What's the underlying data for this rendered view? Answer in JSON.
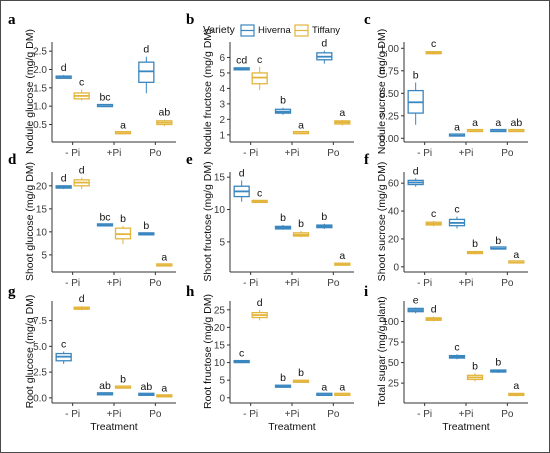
{
  "legend": {
    "title": "Variety",
    "entries": [
      {
        "name": "Hiverna",
        "color": "#3a87bf"
      },
      {
        "name": "Tiffany",
        "color": "#e3b53c"
      }
    ]
  },
  "chart_data": [
    {
      "letter": "a",
      "type": "box",
      "ylabel": "Nodule glucose (mg/g DM)",
      "xlabel": "",
      "categories": [
        "- Pi",
        "+Pi",
        "Po"
      ],
      "ylim": [
        0.05,
        2.75
      ],
      "yticks": [
        0.5,
        1.0,
        1.5,
        2.0,
        2.5
      ],
      "ytick_labels": [
        "0.5",
        "1.0",
        "1.5",
        "2.0",
        "2.5"
      ],
      "series": [
        {
          "name": "Hiverna",
          "boxes": [
            {
              "min": 1.75,
              "q1": 1.76,
              "median": 1.8,
              "q3": 1.82,
              "max": 1.85,
              "label": "d"
            },
            {
              "min": 0.98,
              "q1": 0.99,
              "median": 1.0,
              "q3": 1.02,
              "max": 1.04,
              "label": "bc"
            },
            {
              "min": 1.35,
              "q1": 1.65,
              "median": 1.95,
              "q3": 2.2,
              "max": 2.35,
              "label": "d"
            }
          ]
        },
        {
          "name": "Tiffany",
          "boxes": [
            {
              "min": 1.15,
              "q1": 1.2,
              "median": 1.28,
              "q3": 1.36,
              "max": 1.45,
              "label": "c"
            },
            {
              "min": 0.24,
              "q1": 0.25,
              "median": 0.26,
              "q3": 0.27,
              "max": 0.28,
              "label": "a"
            },
            {
              "min": 0.45,
              "q1": 0.5,
              "median": 0.55,
              "q3": 0.6,
              "max": 0.63,
              "label": "ab"
            }
          ]
        }
      ]
    },
    {
      "letter": "b",
      "type": "box",
      "ylabel": "Nodule fructose (mg/g DM)",
      "xlabel": "",
      "categories": [
        "- Pi",
        "+Pi",
        "Po"
      ],
      "ylim": [
        0.6,
        7.0
      ],
      "yticks": [
        1,
        2,
        3,
        4,
        5,
        6
      ],
      "ytick_labels": [
        "1",
        "2",
        "3",
        "4",
        "5",
        "6"
      ],
      "series": [
        {
          "name": "Hiverna",
          "boxes": [
            {
              "min": 5.15,
              "q1": 5.2,
              "median": 5.25,
              "q3": 5.3,
              "max": 5.35,
              "label": "cd"
            },
            {
              "min": 2.3,
              "q1": 2.4,
              "median": 2.5,
              "q3": 2.65,
              "max": 2.75,
              "label": "b"
            },
            {
              "min": 5.6,
              "q1": 5.85,
              "median": 6.05,
              "q3": 6.3,
              "max": 6.45,
              "label": "d"
            }
          ]
        },
        {
          "name": "Tiffany",
          "boxes": [
            {
              "min": 3.9,
              "q1": 4.3,
              "median": 4.7,
              "q3": 5.0,
              "max": 5.4,
              "label": "c"
            },
            {
              "min": 1.05,
              "q1": 1.08,
              "median": 1.1,
              "q3": 1.12,
              "max": 1.15,
              "label": "a"
            },
            {
              "min": 1.6,
              "q1": 1.7,
              "median": 1.8,
              "q3": 1.9,
              "max": 1.95,
              "label": "a"
            }
          ]
        }
      ]
    },
    {
      "letter": "c",
      "type": "box",
      "ylabel": "Nodule sucrose (mg/g DM)",
      "xlabel": "",
      "categories": [
        "- Pi",
        "+Pi",
        "Po"
      ],
      "ylim": [
        -0.03,
        1.07
      ],
      "yticks": [
        0.0,
        0.25,
        0.5,
        0.75,
        1.0
      ],
      "ytick_labels": [
        "0.00",
        "0.25",
        "0.50",
        "0.75",
        "1.00"
      ],
      "series": [
        {
          "name": "Hiverna",
          "boxes": [
            {
              "min": 0.15,
              "q1": 0.28,
              "median": 0.4,
              "q3": 0.53,
              "max": 0.62,
              "label": "b"
            },
            {
              "min": 0.02,
              "q1": 0.025,
              "median": 0.03,
              "q3": 0.035,
              "max": 0.04,
              "label": "a"
            },
            {
              "min": 0.07,
              "q1": 0.075,
              "median": 0.08,
              "q3": 0.085,
              "max": 0.09,
              "label": "a"
            }
          ]
        },
        {
          "name": "Tiffany",
          "boxes": [
            {
              "min": 0.93,
              "q1": 0.94,
              "median": 0.95,
              "q3": 0.96,
              "max": 0.97,
              "label": "c"
            },
            {
              "min": 0.07,
              "q1": 0.075,
              "median": 0.08,
              "q3": 0.085,
              "max": 0.09,
              "label": "a"
            },
            {
              "min": 0.07,
              "q1": 0.075,
              "median": 0.08,
              "q3": 0.085,
              "max": 0.09,
              "label": "ab"
            }
          ]
        }
      ]
    },
    {
      "letter": "d",
      "type": "box",
      "ylabel": "Shoot glucose (mg/g DM)",
      "xlabel": "",
      "categories": [
        "- Pi",
        "+Pi",
        "Po"
      ],
      "ylim": [
        1.5,
        23.0
      ],
      "yticks": [
        5,
        10,
        15,
        20
      ],
      "ytick_labels": [
        "5",
        "10",
        "15",
        "20"
      ],
      "series": [
        {
          "name": "Hiverna",
          "boxes": [
            {
              "min": 19.3,
              "q1": 19.5,
              "median": 19.8,
              "q3": 20.0,
              "max": 20.1,
              "label": "d"
            },
            {
              "min": 11.2,
              "q1": 11.3,
              "median": 11.4,
              "q3": 11.5,
              "max": 11.6,
              "label": "bc"
            },
            {
              "min": 9.2,
              "q1": 9.35,
              "median": 9.5,
              "q3": 9.6,
              "max": 9.7,
              "label": "b"
            }
          ]
        },
        {
          "name": "Tiffany",
          "boxes": [
            {
              "min": 19.3,
              "q1": 20.0,
              "median": 20.7,
              "q3": 21.3,
              "max": 21.8,
              "label": "d"
            },
            {
              "min": 7.3,
              "q1": 8.5,
              "median": 9.5,
              "q3": 10.8,
              "max": 11.3,
              "label": "b"
            },
            {
              "min": 2.5,
              "q1": 2.6,
              "median": 2.7,
              "q3": 2.8,
              "max": 2.9,
              "label": "a"
            }
          ]
        }
      ]
    },
    {
      "letter": "e",
      "type": "box",
      "ylabel": "Shoot fructose (mg/g DM)",
      "xlabel": "",
      "categories": [
        "- Pi",
        "+Pi",
        "Po"
      ],
      "ylim": [
        0.5,
        15.8
      ],
      "yticks": [
        5,
        10,
        15
      ],
      "ytick_labels": [
        "5",
        "10",
        "15"
      ],
      "series": [
        {
          "name": "Hiverna",
          "boxes": [
            {
              "min": 11.2,
              "q1": 12.0,
              "median": 12.8,
              "q3": 13.6,
              "max": 14.5,
              "label": "d"
            },
            {
              "min": 6.9,
              "q1": 7.0,
              "median": 7.2,
              "q3": 7.4,
              "max": 7.6,
              "label": "b"
            },
            {
              "min": 7.0,
              "q1": 7.2,
              "median": 7.4,
              "q3": 7.6,
              "max": 7.8,
              "label": "b"
            }
          ]
        },
        {
          "name": "Tiffany",
          "boxes": [
            {
              "min": 11.0,
              "q1": 11.1,
              "median": 11.2,
              "q3": 11.3,
              "max": 11.4,
              "label": "c"
            },
            {
              "min": 5.7,
              "q1": 5.9,
              "median": 6.1,
              "q3": 6.4,
              "max": 6.7,
              "label": "b"
            },
            {
              "min": 1.3,
              "q1": 1.4,
              "median": 1.5,
              "q3": 1.6,
              "max": 1.7,
              "label": "a"
            }
          ]
        }
      ]
    },
    {
      "letter": "f",
      "type": "box",
      "ylabel": "Shoot sucrose (mg/g DM)",
      "xlabel": "",
      "categories": [
        "- Pi",
        "+Pi",
        "Po"
      ],
      "ylim": [
        -3,
        68
      ],
      "yticks": [
        0,
        20,
        40,
        60
      ],
      "ytick_labels": [
        "0",
        "20",
        "40",
        "60"
      ],
      "series": [
        {
          "name": "Hiverna",
          "boxes": [
            {
              "min": 57.5,
              "q1": 59.0,
              "median": 60.5,
              "q3": 62.0,
              "max": 63.5,
              "label": "d"
            },
            {
              "min": 27.5,
              "q1": 29.5,
              "median": 31.5,
              "q3": 34.0,
              "max": 36.0,
              "label": "c"
            },
            {
              "min": 12.5,
              "q1": 12.8,
              "median": 13.0,
              "q3": 13.3,
              "max": 13.5,
              "label": "b"
            }
          ]
        },
        {
          "name": "Tiffany",
          "boxes": [
            {
              "min": 29.0,
              "q1": 30.0,
              "median": 31.0,
              "q3": 32.0,
              "max": 33.0,
              "label": "c"
            },
            {
              "min": 9.0,
              "q1": 9.5,
              "median": 10.0,
              "q3": 10.8,
              "max": 11.5,
              "label": "b"
            },
            {
              "min": 2.5,
              "q1": 2.8,
              "median": 3.0,
              "q3": 3.3,
              "max": 3.6,
              "label": "a"
            }
          ]
        }
      ]
    },
    {
      "letter": "g",
      "type": "box",
      "ylabel": "Root glucose (mg/g DM)",
      "xlabel": "Treatment",
      "categories": [
        "- Pi",
        "+Pi",
        "Po"
      ],
      "ylim": [
        -0.4,
        9.4
      ],
      "yticks": [
        0.0,
        2.5,
        5.0,
        7.5
      ],
      "ytick_labels": [
        "0.0",
        "2.5",
        "5.0",
        "7.5"
      ],
      "series": [
        {
          "name": "Hiverna",
          "boxes": [
            {
              "min": 3.3,
              "q1": 3.6,
              "median": 4.0,
              "q3": 4.3,
              "max": 4.5,
              "label": "c"
            },
            {
              "min": 0.25,
              "q1": 0.3,
              "median": 0.35,
              "q3": 0.4,
              "max": 0.45,
              "label": "ab"
            },
            {
              "min": 0.2,
              "q1": 0.25,
              "median": 0.3,
              "q3": 0.35,
              "max": 0.4,
              "label": "ab"
            }
          ]
        },
        {
          "name": "Tiffany",
          "boxes": [
            {
              "min": 8.5,
              "q1": 8.6,
              "median": 8.7,
              "q3": 8.8,
              "max": 8.9,
              "label": "d"
            },
            {
              "min": 0.9,
              "q1": 0.95,
              "median": 1.0,
              "q3": 1.05,
              "max": 1.1,
              "label": "b"
            },
            {
              "min": 0.05,
              "q1": 0.1,
              "median": 0.15,
              "q3": 0.2,
              "max": 0.25,
              "label": "a"
            }
          ]
        }
      ]
    },
    {
      "letter": "h",
      "type": "box",
      "ylabel": "Root fructose (mg/g DM)",
      "xlabel": "Treatment",
      "categories": [
        "- Pi",
        "+Pi",
        "Po"
      ],
      "ylim": [
        -1.2,
        27.5
      ],
      "yticks": [
        0,
        5,
        10,
        15,
        20,
        25
      ],
      "ytick_labels": [
        "0",
        "5",
        "10",
        "15",
        "20",
        "25"
      ],
      "series": [
        {
          "name": "Hiverna",
          "boxes": [
            {
              "min": 9.8,
              "q1": 10.0,
              "median": 10.2,
              "q3": 10.4,
              "max": 10.6,
              "label": "c"
            },
            {
              "min": 2.8,
              "q1": 3.0,
              "median": 3.2,
              "q3": 3.4,
              "max": 3.6,
              "label": "b"
            },
            {
              "min": 0.6,
              "q1": 0.7,
              "median": 0.8,
              "q3": 0.9,
              "max": 1.0,
              "label": "a"
            }
          ]
        },
        {
          "name": "Tiffany",
          "boxes": [
            {
              "min": 22.0,
              "q1": 22.8,
              "median": 23.5,
              "q3": 24.2,
              "max": 25.0,
              "label": "d"
            },
            {
              "min": 4.2,
              "q1": 4.4,
              "median": 4.6,
              "q3": 4.8,
              "max": 5.0,
              "label": "b"
            },
            {
              "min": 0.6,
              "q1": 0.7,
              "median": 0.8,
              "q3": 0.9,
              "max": 1.0,
              "label": "a"
            }
          ]
        }
      ]
    },
    {
      "letter": "i",
      "type": "box",
      "ylabel": "Total sugar (mg/g plant)",
      "xlabel": "Treatment",
      "categories": [
        "- Pi",
        "+Pi",
        "Po"
      ],
      "ylim": [
        2,
        125
      ],
      "yticks": [
        25,
        50,
        75,
        100
      ],
      "ytick_labels": [
        "25",
        "50",
        "75",
        "100"
      ],
      "series": [
        {
          "name": "Hiverna",
          "boxes": [
            {
              "min": 110,
              "q1": 112,
              "median": 114,
              "q3": 116,
              "max": 117,
              "label": "e"
            },
            {
              "min": 54,
              "q1": 55.5,
              "median": 57,
              "q3": 58.5,
              "max": 60,
              "label": "c"
            },
            {
              "min": 37.5,
              "q1": 38.5,
              "median": 39.5,
              "q3": 40.5,
              "max": 41.5,
              "label": "b"
            }
          ]
        },
        {
          "name": "Tiffany",
          "boxes": [
            {
              "min": 100,
              "q1": 101.5,
              "median": 103,
              "q3": 104.5,
              "max": 106,
              "label": "d"
            },
            {
              "min": 27,
              "q1": 29.5,
              "median": 32,
              "q3": 34.5,
              "max": 37,
              "label": "b"
            },
            {
              "min": 9,
              "q1": 10,
              "median": 11,
              "q3": 12,
              "max": 13,
              "label": "a"
            }
          ]
        }
      ]
    }
  ]
}
